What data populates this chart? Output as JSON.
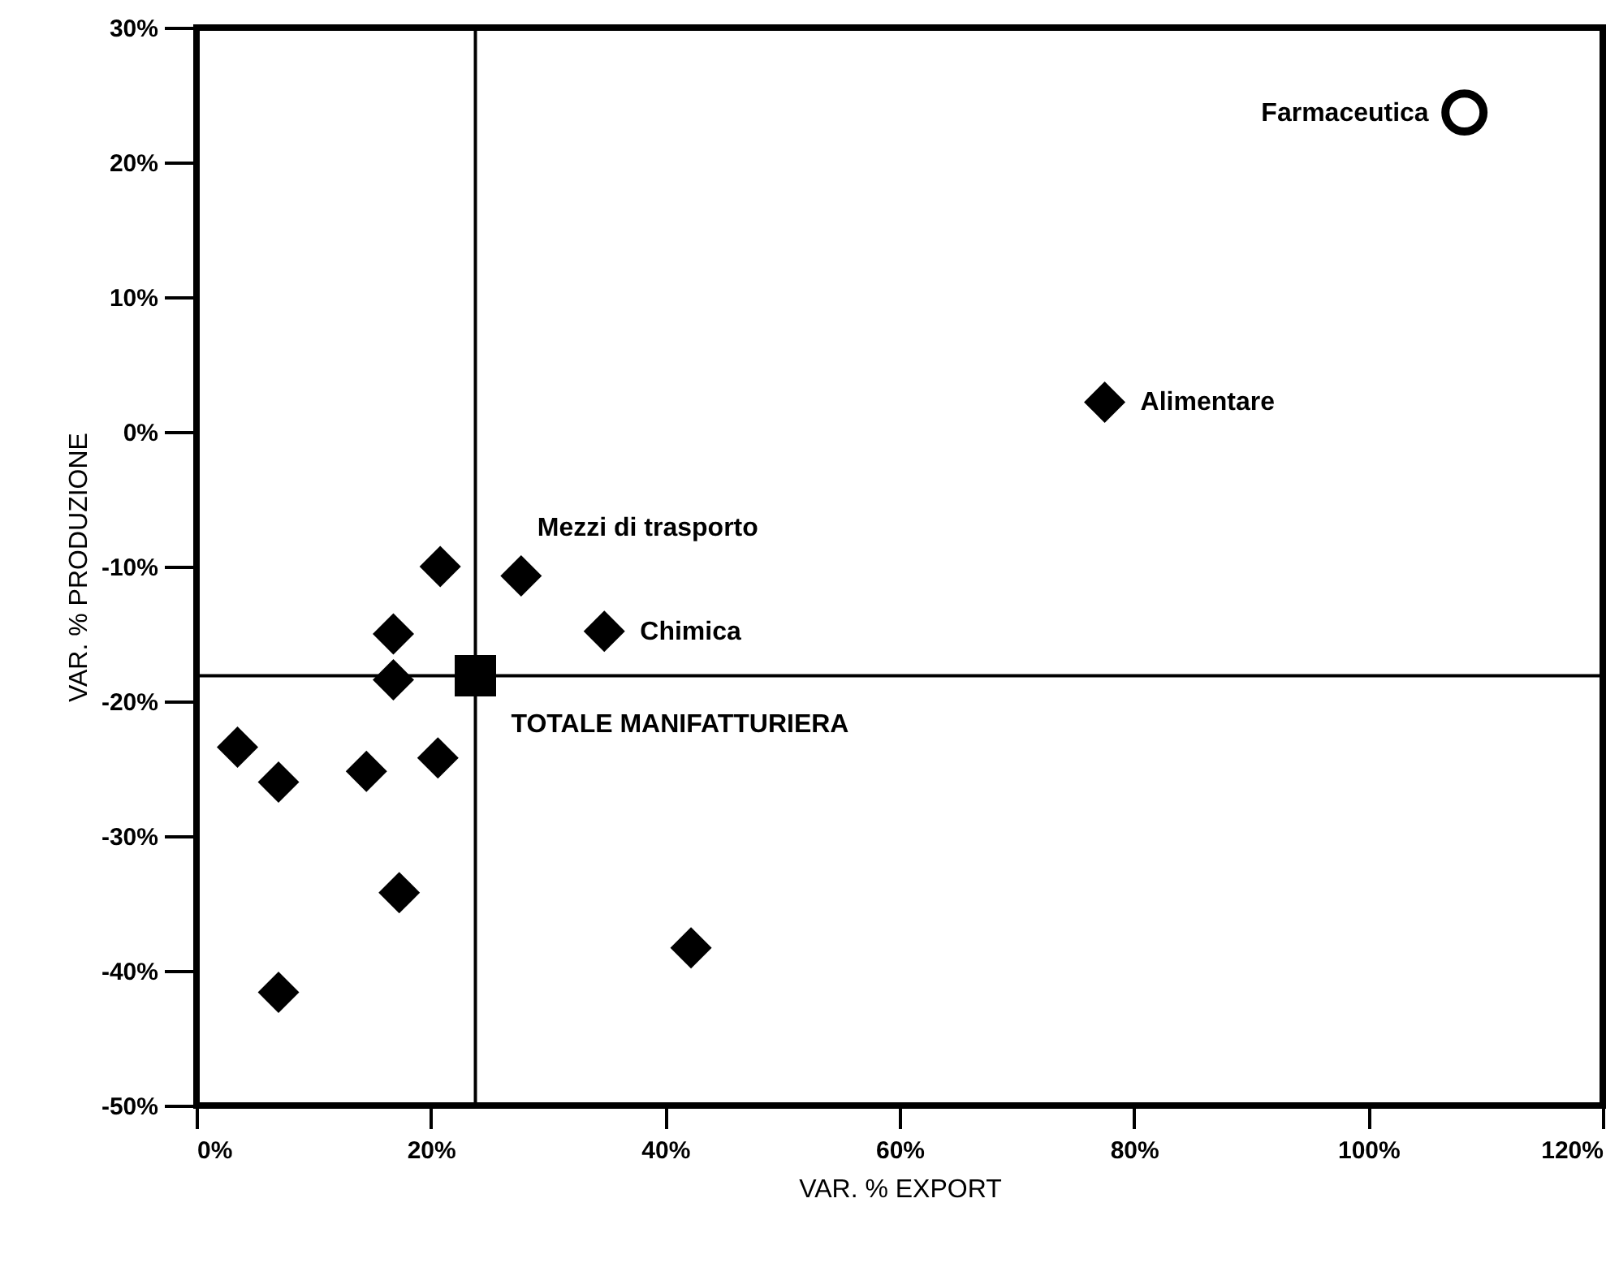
{
  "chart_data": {
    "type": "scatter",
    "xlabel": "VAR. % EXPORT",
    "ylabel": "VAR. % PRODUZIONE",
    "xlim": [
      0,
      120
    ],
    "ylim": [
      -50,
      30
    ],
    "xticks": [
      {
        "value": 0,
        "label": "0%"
      },
      {
        "value": 20,
        "label": "20%"
      },
      {
        "value": 40,
        "label": "40%"
      },
      {
        "value": 60,
        "label": "60%"
      },
      {
        "value": 80,
        "label": "80%"
      },
      {
        "value": 100,
        "label": "100%"
      },
      {
        "value": 120,
        "label": "120%"
      }
    ],
    "yticks": [
      {
        "value": -50,
        "label": "-50%"
      },
      {
        "value": -40,
        "label": "-40%"
      },
      {
        "value": -30,
        "label": "-30%"
      },
      {
        "value": -20,
        "label": "-20%"
      },
      {
        "value": -10,
        "label": "-10%"
      },
      {
        "value": 0,
        "label": "0%"
      },
      {
        "value": 10,
        "label": "10%"
      },
      {
        "value": 20,
        "label": "20%"
      },
      {
        "value": 30,
        "label": "30%"
      }
    ],
    "grid": false,
    "series": [
      {
        "color": "#000000",
        "marker": "diamond",
        "x": [
          20.8,
          27.7,
          34.8,
          16.8,
          16.8,
          3.5,
          7.0,
          14.5,
          20.6,
          17.3,
          42.2,
          7.0,
          77.5
        ],
        "values": [
          -10.0,
          -10.7,
          -14.8,
          -15.0,
          -18.4,
          -23.4,
          -26.0,
          -25.2,
          -24.2,
          -34.2,
          -38.3,
          -41.6,
          2.2
        ]
      },
      {
        "color": "#000000",
        "marker": "square",
        "x": [
          23.8
        ],
        "values": [
          -18.1
        ]
      },
      {
        "color": "#000000",
        "marker": "circle",
        "x": [
          108.2
        ],
        "values": [
          23.7
        ]
      }
    ],
    "ref_lines": [
      {
        "axis": "x",
        "value": 23.8,
        "color": "#000000"
      },
      {
        "axis": "y",
        "value": -18.1,
        "color": "#000000"
      }
    ],
    "annotations": [
      {
        "text": "Farmaceutica",
        "x": 108.2,
        "y": 23.7
      },
      {
        "text": "Alimentare",
        "x": 77.5,
        "y": 2.2
      },
      {
        "text": "Mezzi di trasporto",
        "x": 27.7,
        "y": -10.7
      },
      {
        "text": "Chimica",
        "x": 34.8,
        "y": -14.8
      },
      {
        "text": "TOTALE MANIFATTURIERA",
        "x": 23.8,
        "y": -18.1
      }
    ]
  }
}
